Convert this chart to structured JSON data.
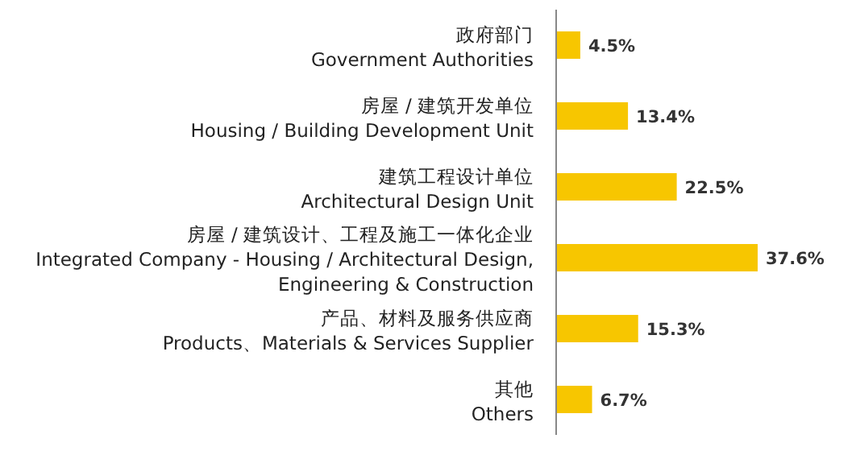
{
  "chart_data": {
    "type": "bar",
    "orientation": "horizontal",
    "categories": [
      "政府部门\nGovernment Authorities",
      "房屋 / 建筑开发单位\nHousing / Building Development Unit",
      "建筑工程设计单位\nArchitectural Design Unit",
      "房屋 / 建筑设计、工程及施工一体化企业\nIntegrated Company - Housing / Architectural Design,\nEngineering & Construction",
      "产品、材料及服务供应商\nProducts、Materials & Services Supplier",
      "其他\nOthers"
    ],
    "values": [
      4.5,
      13.4,
      22.5,
      37.6,
      15.3,
      6.7
    ],
    "value_labels": [
      "4.5%",
      "13.4%",
      "22.5%",
      "37.6%",
      "15.3%",
      "6.7%"
    ],
    "color": "#f7c600"
  }
}
